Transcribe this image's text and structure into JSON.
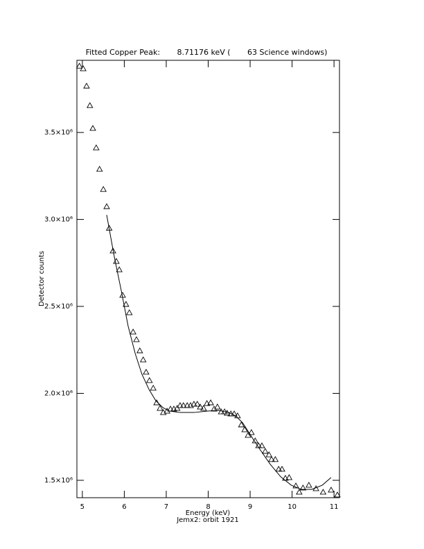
{
  "chart_data": {
    "type": "scatter",
    "title": "Fitted Copper Peak:       8.71176 keV (       63 Science windows)",
    "x_label": "Energy (keV)",
    "y_label": "Detector counts",
    "subtitle": "Jemx2: orbit 1921",
    "xlim": [
      4.87,
      11.13
    ],
    "ylim": [
      1400000,
      3915000
    ],
    "xticks": [
      5,
      6,
      7,
      8,
      9,
      10,
      11
    ],
    "yticks": [
      {
        "value": 1500000,
        "label": "1.5×10⁶"
      },
      {
        "value": 2000000,
        "label": "2.0×10⁶"
      },
      {
        "value": 2500000,
        "label": "2.5×10⁶"
      },
      {
        "value": 3000000,
        "label": "3.0×10⁶"
      },
      {
        "value": 3500000,
        "label": "3.5×10⁶"
      }
    ],
    "series": [
      {
        "mode": "markers",
        "marker": "triangle",
        "color": "#000000",
        "x": [
          4.93,
          5.02,
          5.1,
          5.18,
          5.25,
          5.33,
          5.41,
          5.5,
          5.58,
          5.64,
          5.73,
          5.81,
          5.88,
          5.96,
          6.04,
          6.12,
          6.21,
          6.29,
          6.37,
          6.45,
          6.52,
          6.6,
          6.69,
          6.77,
          6.85,
          6.93,
          7.02,
          7.1,
          7.18,
          7.26,
          7.33,
          7.41,
          7.5,
          7.58,
          7.66,
          7.74,
          7.81,
          7.89,
          7.97,
          8.06,
          8.14,
          8.22,
          8.31,
          8.39,
          8.45,
          8.54,
          8.62,
          8.7,
          8.79,
          8.87,
          8.95,
          9.03,
          9.12,
          9.2,
          9.28,
          9.36,
          9.45,
          9.51,
          9.6,
          9.68,
          9.76,
          9.84,
          9.93,
          10.09,
          10.17,
          10.26,
          10.4,
          10.57,
          10.74,
          10.93,
          11.08
        ],
        "values": [
          3882000,
          3867000,
          3767000,
          3655000,
          3524000,
          3412000,
          3289000,
          3173000,
          3074000,
          2950000,
          2819000,
          2759000,
          2711000,
          2564000,
          2512000,
          2464000,
          2353000,
          2309000,
          2245000,
          2193000,
          2122000,
          2074000,
          2030000,
          1946000,
          1914000,
          1890000,
          1898000,
          1910000,
          1910000,
          1914000,
          1930000,
          1930000,
          1930000,
          1930000,
          1938000,
          1938000,
          1922000,
          1914000,
          1942000,
          1946000,
          1910000,
          1922000,
          1894000,
          1894000,
          1886000,
          1882000,
          1882000,
          1871000,
          1819000,
          1791000,
          1759000,
          1775000,
          1727000,
          1699000,
          1699000,
          1667000,
          1647000,
          1620000,
          1620000,
          1564000,
          1564000,
          1512000,
          1516000,
          1468000,
          1432000,
          1456000,
          1472000,
          1452000,
          1432000,
          1444000,
          1416000
        ]
      },
      {
        "mode": "line",
        "color": "#000000",
        "x": [
          5.58,
          5.76,
          5.93,
          6.09,
          6.26,
          6.42,
          6.59,
          6.75,
          6.92,
          7.08,
          7.33,
          7.66,
          7.99,
          8.24,
          8.49,
          8.65,
          8.82,
          8.98,
          9.23,
          9.48,
          9.73,
          9.98,
          10.22,
          10.47,
          10.72,
          10.93
        ],
        "values": [
          3026000,
          2787000,
          2588000,
          2388000,
          2229000,
          2110000,
          2022000,
          1958000,
          1918000,
          1898000,
          1890000,
          1890000,
          1898000,
          1902000,
          1890000,
          1871000,
          1831000,
          1771000,
          1679000,
          1592000,
          1520000,
          1472000,
          1448000,
          1448000,
          1472000,
          1516000
        ]
      }
    ]
  }
}
